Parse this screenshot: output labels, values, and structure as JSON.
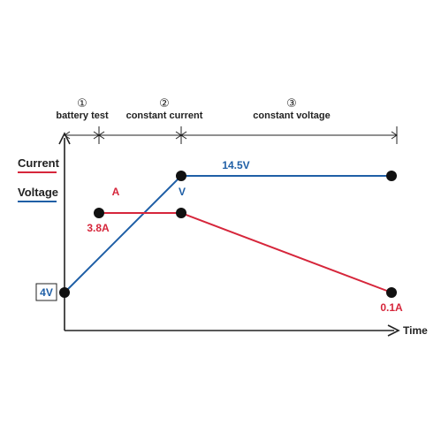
{
  "colors": {
    "current": "#d6263b",
    "voltage": "#1f5fa6",
    "axis": "#222222",
    "point": "#111111"
  },
  "phases": [
    {
      "number": "①",
      "label": "battery test"
    },
    {
      "number": "②",
      "label": "constant current"
    },
    {
      "number": "③",
      "label": "constant voltage"
    }
  ],
  "legend": {
    "current": "Current",
    "voltage": "Voltage"
  },
  "axis": {
    "x_label": "Time"
  },
  "labels": {
    "start_voltage": "4V",
    "current_unit": "A",
    "current_value": "3.8A",
    "voltage_unit": "V",
    "voltage_value": "14.5V",
    "end_current": "0.1A"
  }
}
